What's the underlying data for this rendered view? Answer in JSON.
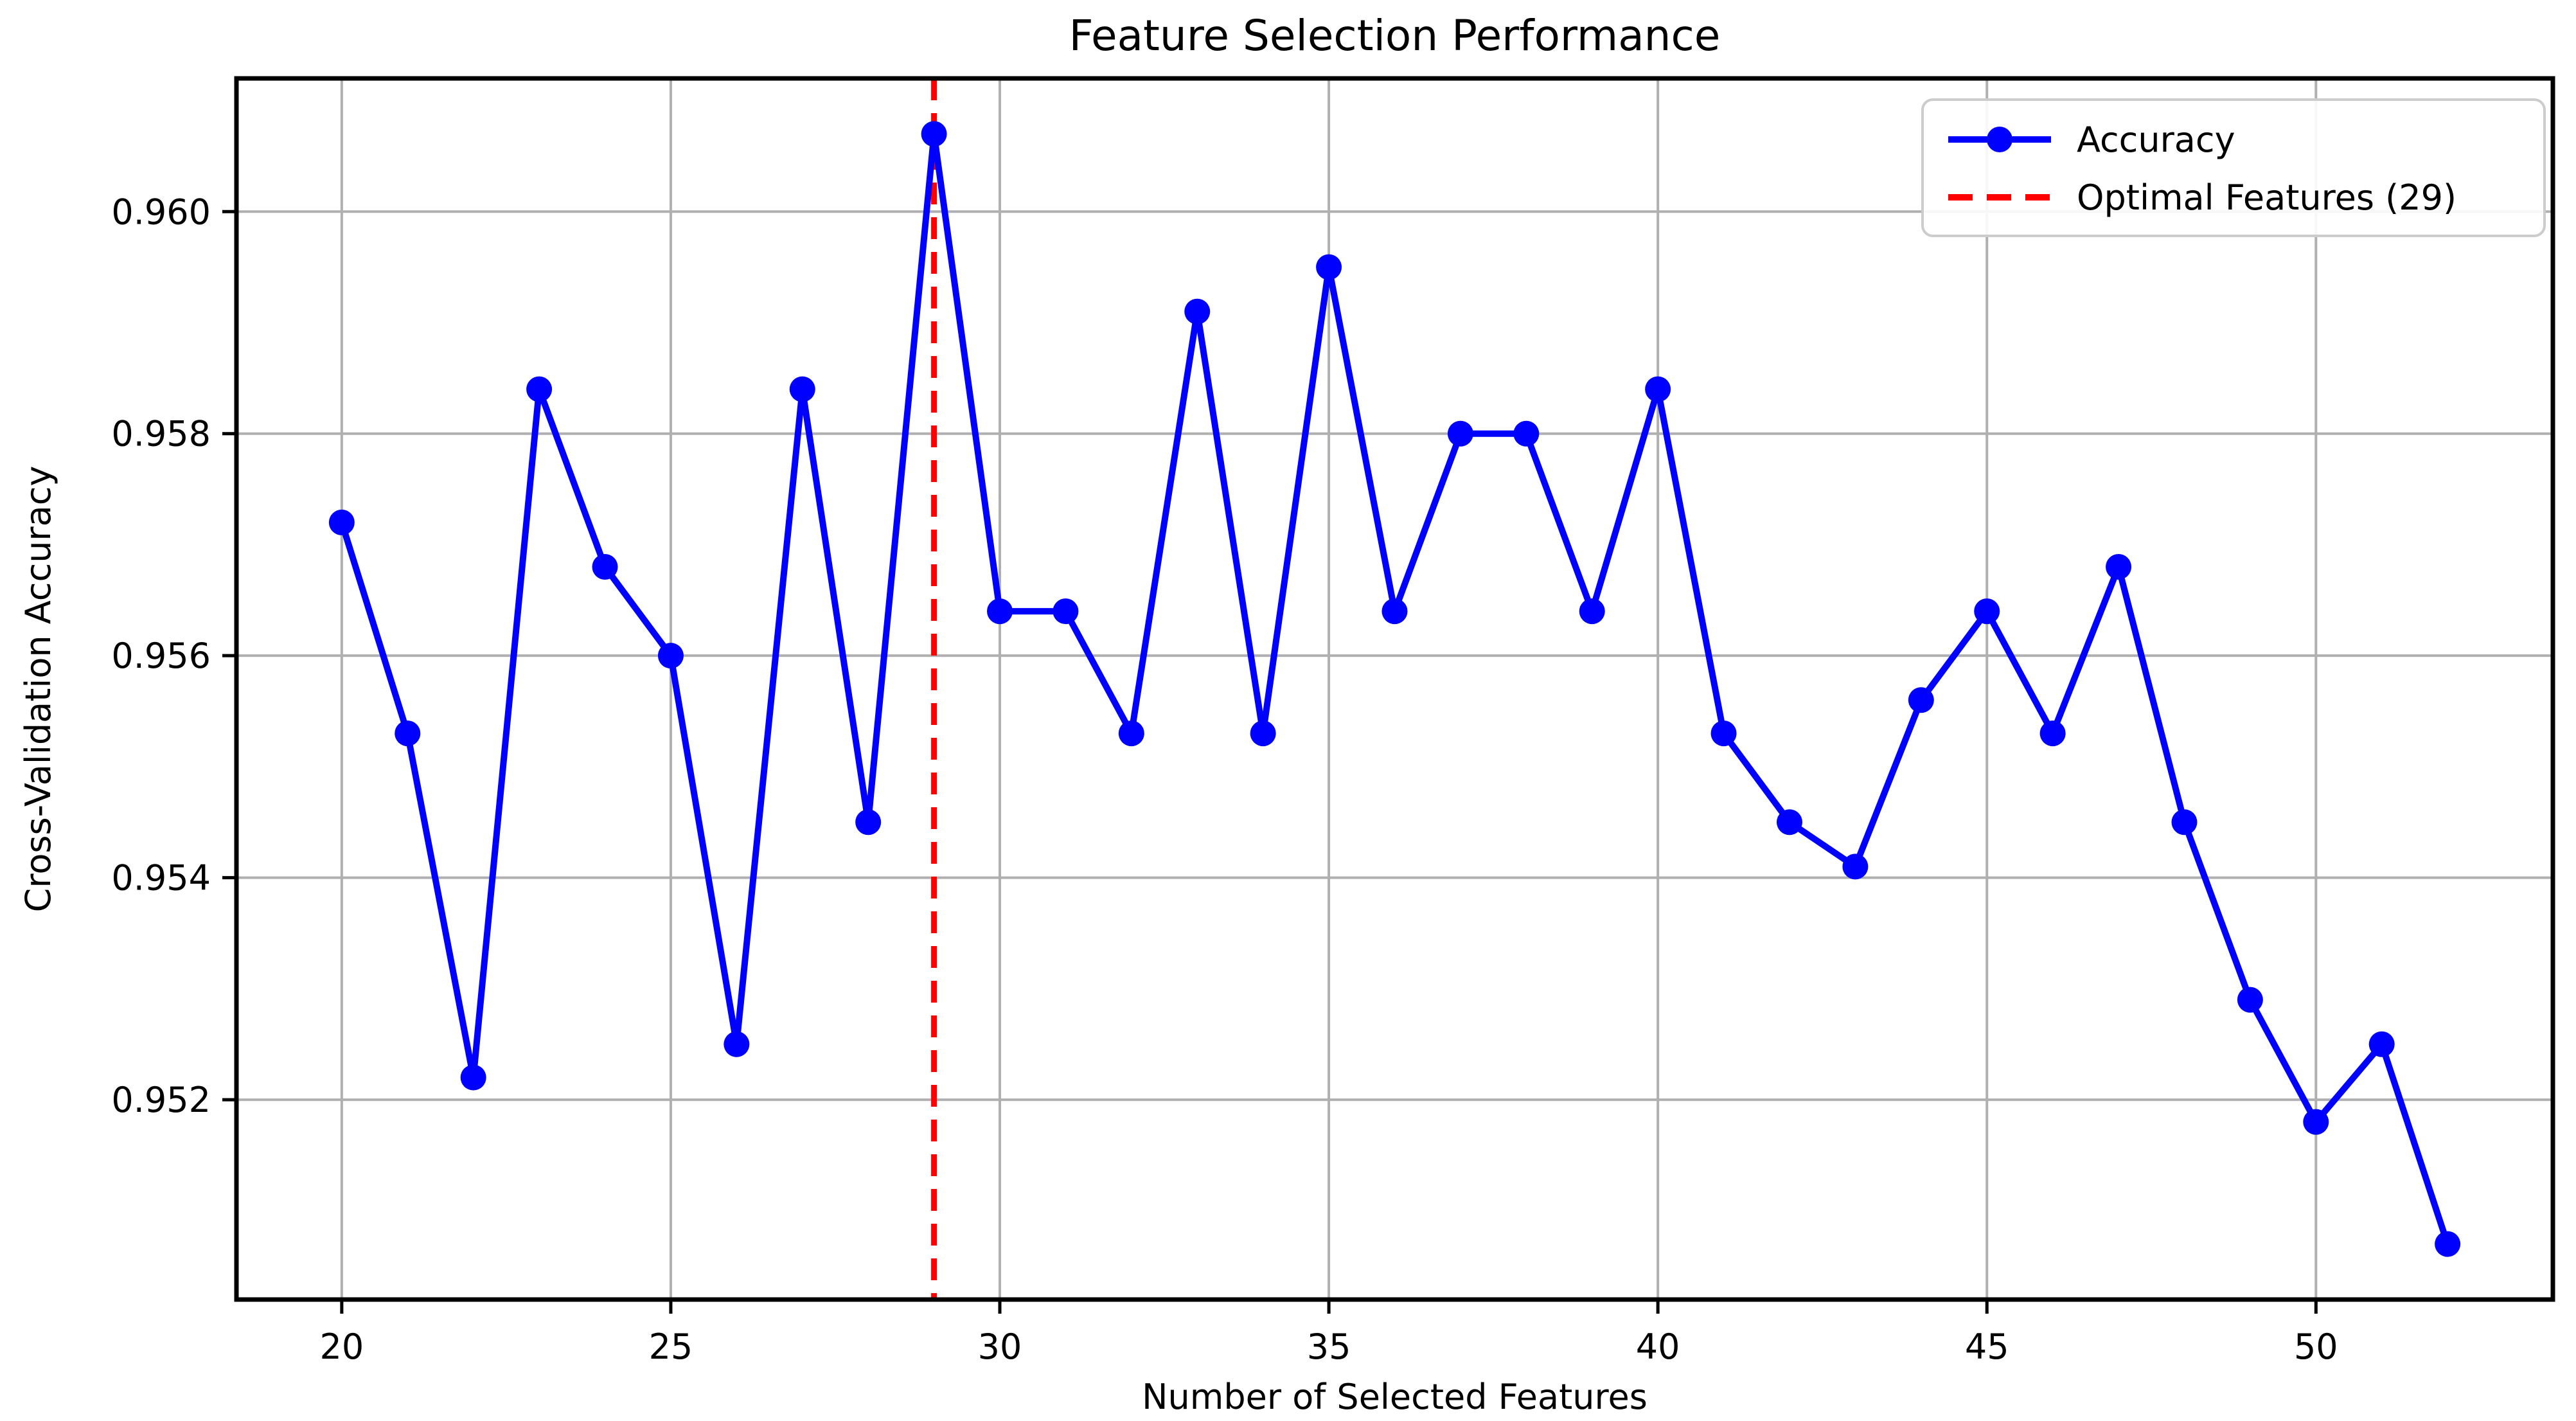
{
  "chart_data": {
    "type": "line",
    "title": "Feature Selection Performance",
    "xlabel": "Number of Selected Features",
    "ylabel": "Cross-Validation Accuracy",
    "x": [
      20,
      21,
      22,
      23,
      24,
      25,
      26,
      27,
      28,
      29,
      30,
      31,
      32,
      33,
      34,
      35,
      36,
      37,
      38,
      39,
      40,
      41,
      42,
      43,
      44,
      45,
      46,
      47,
      48,
      49,
      50,
      51,
      52
    ],
    "series": [
      {
        "name": "Accuracy",
        "color": "#0000FF",
        "values": [
          0.9572,
          0.9553,
          0.9522,
          0.9584,
          0.9568,
          0.956,
          0.9525,
          0.9584,
          0.9545,
          0.9607,
          0.9564,
          0.9564,
          0.9553,
          0.9591,
          0.9553,
          0.9595,
          0.9564,
          0.958,
          0.958,
          0.9564,
          0.9584,
          0.9553,
          0.9545,
          0.9541,
          0.9556,
          0.9564,
          0.9553,
          0.9568,
          0.9545,
          0.9529,
          0.9518,
          0.9525,
          0.9507
        ]
      }
    ],
    "optimal_features": 29,
    "optimal_label": "Optimal Features (29)",
    "optimal_color": "#FF0000",
    "x_ticks": [
      20,
      25,
      30,
      35,
      40,
      45,
      50
    ],
    "y_ticks": [
      0.952,
      0.954,
      0.956,
      0.958,
      0.96
    ],
    "xlim": [
      18.4,
      53.6
    ],
    "ylim": [
      0.9502,
      0.9612
    ],
    "grid": true,
    "grid_color": "#b0b0b0",
    "legend_position": "upper right",
    "legend_entries": [
      "Accuracy",
      "Optimal Features (29)"
    ]
  }
}
